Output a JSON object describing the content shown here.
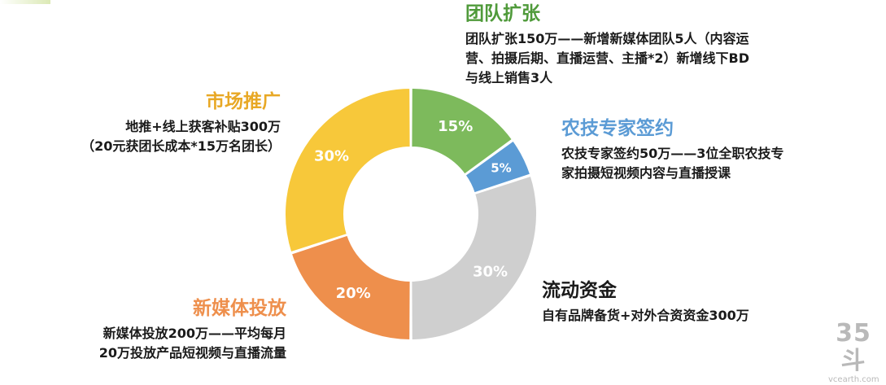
{
  "chart_data": {
    "type": "pie",
    "categories": [
      "团队扩张",
      "农技专家签约",
      "流动资金",
      "新媒体投放",
      "市场推广"
    ],
    "values": [
      15,
      5,
      30,
      20,
      30
    ],
    "labels": [
      "15%",
      "5%",
      "30%",
      "20%",
      "30%"
    ],
    "colors": [
      "#7dba5c",
      "#5b9bd5",
      "#cfcfcf",
      "#ee8f4c",
      "#f7c83a"
    ]
  },
  "annotations": {
    "team": {
      "title": "团队扩张",
      "lines": [
        "团队扩张150万——新增新媒体团队5人（内容运",
        "营、拍摄后期、直播运营、主播*2）新增线下BD",
        "与线上销售3人"
      ],
      "color": "#4f9a3a"
    },
    "expert": {
      "title": "农技专家签约",
      "lines": [
        "农技专家签约50万——3位全职农技专",
        "家拍摄短视频内容与直播授课"
      ],
      "color": "#5b9bd5"
    },
    "capital": {
      "title": "流动资金",
      "lines": [
        "自有品牌备货+对外合资资金300万"
      ],
      "color": "#1a1a1a"
    },
    "media": {
      "title": "新媒体投放",
      "lines": [
        "新媒体投放200万——平均每月",
        "20万投放产品短视频与直播流量"
      ],
      "color": "#ee8f4c"
    },
    "market": {
      "title": "市场推广",
      "lines": [
        "地推+线上获客补贴300万",
        "（20元获团长成本*15万名团长）"
      ],
      "color": "#e8a825"
    }
  },
  "watermark": {
    "logo": "35斗",
    "domain": "vcearth.com"
  }
}
